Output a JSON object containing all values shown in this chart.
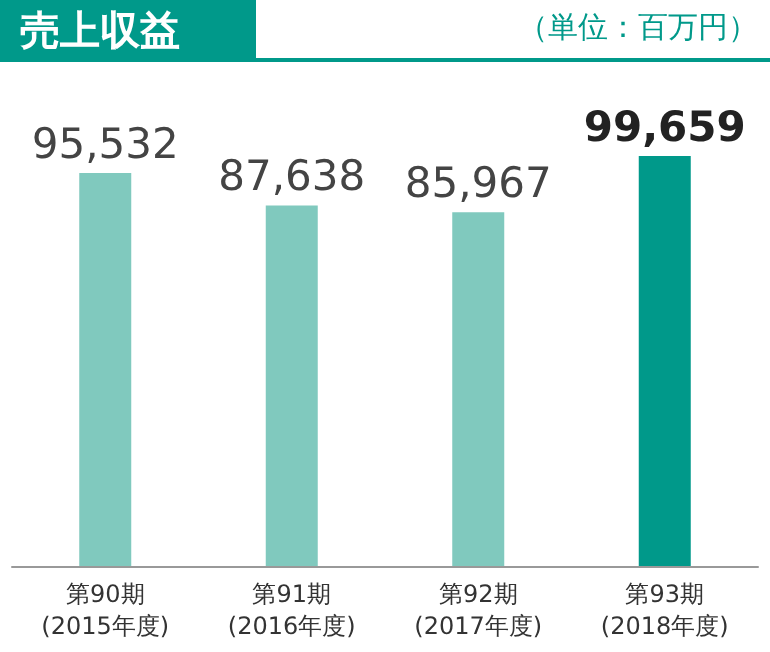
{
  "chart_data": {
    "type": "bar",
    "title": "売上収益",
    "annotations": [
      "（単位：百万円）"
    ],
    "categories": [
      "第90期\n(2015年度)",
      "第91期\n(2016年度)",
      "第92期\n(2017年度)",
      "第93期\n(2018年度)"
    ],
    "values": [
      95532,
      87638,
      85967,
      99659
    ],
    "colors": [
      "#80c9be",
      "#80c9be",
      "#80c9be",
      "#00998a"
    ],
    "value_labels": [
      "95,532",
      "87,638",
      "85,967",
      "99,659"
    ]
  }
}
